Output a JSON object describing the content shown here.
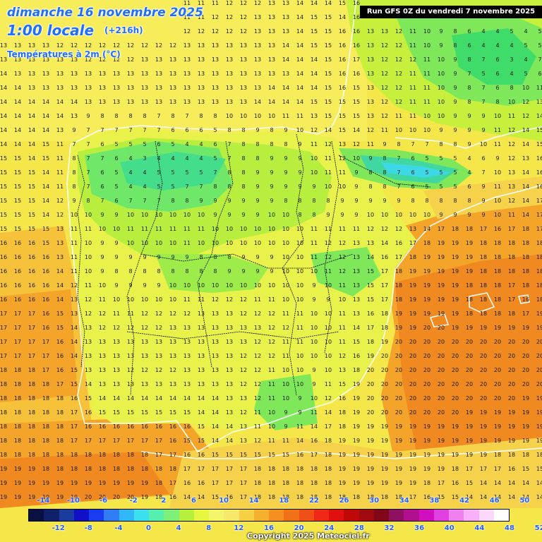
{
  "header": {
    "date": "dimanche 16 novembre 2025",
    "hour": "1:00 locale",
    "lead": "(+216h)",
    "variable": "Températures à 2m (°C)",
    "run": "Run GFS 0Z du vendredi 7 novembre 2025"
  },
  "legend": {
    "top_labels": [
      "-14",
      "-10",
      "-6",
      "-2",
      "2",
      "6",
      "10",
      "14",
      "18",
      "22",
      "26",
      "30",
      "34",
      "38",
      "42",
      "46",
      "50"
    ],
    "bottom_labels": [
      "-12",
      "-8",
      "-4",
      "0",
      "4",
      "8",
      "12",
      "16",
      "20",
      "24",
      "28",
      "32",
      "36",
      "40",
      "44",
      "48",
      "52"
    ],
    "colors": [
      "#0a1040",
      "#10206a",
      "#1a3c9e",
      "#1010c8",
      "#1a3cf0",
      "#2f7cf5",
      "#2fb8f5",
      "#3be0f0",
      "#55f0b0",
      "#7ef07a",
      "#b6f03c",
      "#e6f540",
      "#f5f56a",
      "#f5e86a",
      "#f5d045",
      "#f5b030",
      "#f59020",
      "#f07018",
      "#f05018",
      "#f02818",
      "#e01010",
      "#c00808",
      "#a00a10",
      "#800818",
      "#901060",
      "#b01090",
      "#d010c0",
      "#e040e0",
      "#f080f0",
      "#f8b0f8",
      "#fcd8fc",
      "#ffffff"
    ]
  },
  "copyright": "Copyright 2025 Meteociel.fr",
  "grid_values": {
    "rows": [
      "12 12 12 12 12 12 12 12 12 12 12 11 11 11 11 11 12 12 12 13 13 14 14 14 15 16 13 12 12 11 10 10 9 9 8 8 7 6 6",
      "12 12 12 12 12 12 12 12 12 12 12 12 12 11 11 12 12 12 13 13 13 14 15 15 14 16 13 13 12 11 10 9 8 6 5 5 5 5 6",
      "13 13 12 12 12 12 12 12 12 12 12 12 12 12 12 12 12 12 13 13 13 14 15 15 16 16 13 13 12 11 10 9 8 6 4 4 5 4 5",
      "13 13 13 13 12 12 12 12 12 12 12 12 12 13 13 13 13 13 13 13 14 14 15 15 16 16 13 12 12 11 10 9 8 6 4 4 4 5 5",
      "13 13 13 13 13 13 12 12 12 12 13 13 13 13 13 13 13 13 13 13 14 14 14 15 16 17 13 12 12 12 11 10 9 8 7 6 3 4 7",
      "14 13 13 13 13 13 13 13 13 13 13 13 13 13 13 13 13 13 13 13 13 14 14 15 16 16 13 12 12 11 11 10 9 7 5 6 4 5 6",
      "14 14 13 13 13 13 13 13 13 13 13 13 13 13 13 13 13 13 13 14 14 14 14 15 16 15 13 12 12 11 11 10 9 8 7 6 8 10 11",
      "14 14 14 14 14 14 13 13 13 13 13 13 13 13 13 13 13 13 14 14 14 14 15 15 15 15 13 12 12 11 11 10 9 8 7 8 10 12 13",
      "14 14 14 14 14 13 9 8 8 8 8 7 8 7 8 8 10 10 10 10 11 11 13 15 15 15 13 12 11 11 10 10 9 9 9 10 11 12 14",
      "14 14 14 14 13 9 7 7 7 7 7 7 6 6 6 5 8 8 9 8 9 10 12 14 15 14 12 11 10 10 10 9 9 9 9 11 12 14 15",
      "14 14 14 15 11 7 7 6 5 5 5 6 5 4 4 6 7 8 8 8 8 9 11 12 13 12 11 9 8 7 7 8 8 9 10 11 12 14 15",
      "15 15 14 15 11 8 7 7 6 4 3 4 4 4 4 5 7 8 8 9 9 9 10 11 12 10 9 8 7 6 5 5 5 4 6 9 12 13 16",
      "15 15 15 14 11 8 7 6 5 4 4 5 5 5 5 7 8 8 9 9 9 9 10 11 11 9 8 8 7 6 5 5 5 4 7 10 13 14 16",
      "15 15 15 14 11 8 7 6 5 4 4 5 5 7 7 8 8 8 9 9 9 9 9 10 10 9 8 8 7 6 5 5 5 6 9 11 13 14 16",
      "15 15 15 14 12 9 8 7 6 7 7 7 8 8 9 9 9 9 9 9 8 8 8 8 9 9 9 9 9 8 8 8 8 8 9 10 12 14 17",
      "15 15 15 14 12 10 10 9 9 10 10 10 10 10 10 9 9 9 9 10 10 8 8 9 9 9 10 10 10 10 10 9 9 9 9 10 11 14 17",
      "15 15 15 15 13 11 11 10 10 11 11 11 11 11 11 10 10 10 10 10 10 10 11 11 11 11 12 12 12 13 14 17 18 18 17 16 17 18 17",
      "16 16 16 15 13 11 10 9 9 10 10 10 10 11 10 10 10 10 10 10 10 10 11 12 12 13 13 14 16 17 18 19 19 19 18 18 18 18 18",
      "16 16 16 16 13 11 10 9 9 9 9 9 9 9 8 8 8 9 9 9 10 10 11 12 12 13 14 16 17 18 19 19 19 19 18 18 18 18 18",
      "16 16 16 16 14 11 10 9 8 8 8 8 8 8 8 8 9 9 9 9 10 10 10 11 12 13 15 17 18 19 19 19 19 19 18 18 18 18 18",
      "16 16 16 16 14 12 11 10 9 9 9 9 10 10 10 10 10 10 10 10 10 10 9 10 11 13 15 17 18 19 19 19 19 18 18 18 17 18 18",
      "16 16 16 16 14 13 12 11 10 10 10 10 10 11 11 12 12 12 11 11 10 10 9 9 10 13 15 17 18 19 19 19 19 18 18 18 17 16 18",
      "17 17 17 16 15 13 12 12 11 11 12 12 12 12 13 13 13 12 12 12 11 11 10 10 11 13 16 18 19 19 19 19 19 18 18 18 18 17 19",
      "17 17 17 16 15 14 13 12 12 12 12 12 13 13 13 13 13 13 13 12 12 11 10 10 11 14 17 18 19 19 20 20 19 19 19 19 19 19 19",
      "17 17 17 17 16 14 13 13 13 13 13 13 13 13 13 13 13 13 12 12 11 11 10 10 11 15 18 19 20 20 20 20 20 20 20 20 20 20 20",
      "17 17 17 17 16 14 13 13 13 13 13 13 13 13 13 13 13 12 12 12 11 10 10 10 12 16 19 20 20 20 20 20 20 20 20 20 20 20 20",
      "18 18 18 17 16 15 13 13 13 12 12 12 12 13 13 13 13 12 12 11 10 10 9 10 13 18 20 20 20 20 20 20 20 20 20 20 20 20 20",
      "18 18 18 18 17 15 14 13 13 13 13 13 13 13 13 13 13 12 12 11 10 10 9 11 15 19 20 20 20 20 20 20 20 20 20 20 20 20 20",
      "18 18 18 18 18 16 15 14 14 14 14 14 14 14 14 14 13 13 12 11 10 9 10 12 16 19 20 20 20 20 20 20 20 20 20 20 20 19 19",
      "18 18 18 18 18 17 16 15 15 15 15 15 15 15 14 14 13 12 11 10 9 9 11 14 18 19 20 20 20 20 20 20 20 19 19 19 19 19 19",
      "18 18 18 18 18 17 16 16 16 16 16 16 16 16 15 14 14 13 11 10 9 11 14 17 18 19 19 19 19 19 19 19 19 19 19 19 19 19 19",
      "18 18 18 18 18 17 17 17 17 17 17 17 16 15 15 14 14 13 12 11 11 14 16 18 19 19 19 19 19 19 19 19 19 19 19 19 19 19 19",
      "18 18 18 18 18 18 18 18 18 18 18 17 17 16 16 15 15 15 15 15 15 16 17 18 19 19 19 19 19 19 19 19 19 19 19 18 18 18 18",
      "19 19 19 18 18 18 18 18 18 18 18 18 18 17 17 17 17 17 18 18 18 18 18 18 19 19 19 19 19 19 19 19 18 17 17 17 16 15 15",
      "19 19 19 19 19 19 19 19 19 19 19 18 17 16 16 17 17 17 18 18 18 18 18 18 19 19 19 19 19 19 18 17 16 15 14 14 14 14 14",
      "19 19 19 19 19 19 20 20 20 20 19 18 16 14 14 15 16 17 18 18 18 18 18 18 18 18 18 18 18 17 16 15 15 14 14 14 14 14 14",
      "19 19 19 19 20 20 20 20 20 20 19 17 15 13 13 14 16 17 17 17 17 17 17 16 16 15 15 14 14 14 14 14 14 14 14 14 14 13 13",
      "20 20 20 20 20 20 20 20 20 20 18 16 14 13 13 14 15 16 16 16 15 14 14 14 14 13 13 13 13 13 14 14 14 13 13 13 13 13 13",
      "20 20 20 20 20 20 20 20 20 20 17 15 13 13 13 13 14 14 14 14 13 13 13 13 13 13 13 13 13 13 13 13 13 13 13 13 13 13 13"
    ]
  }
}
